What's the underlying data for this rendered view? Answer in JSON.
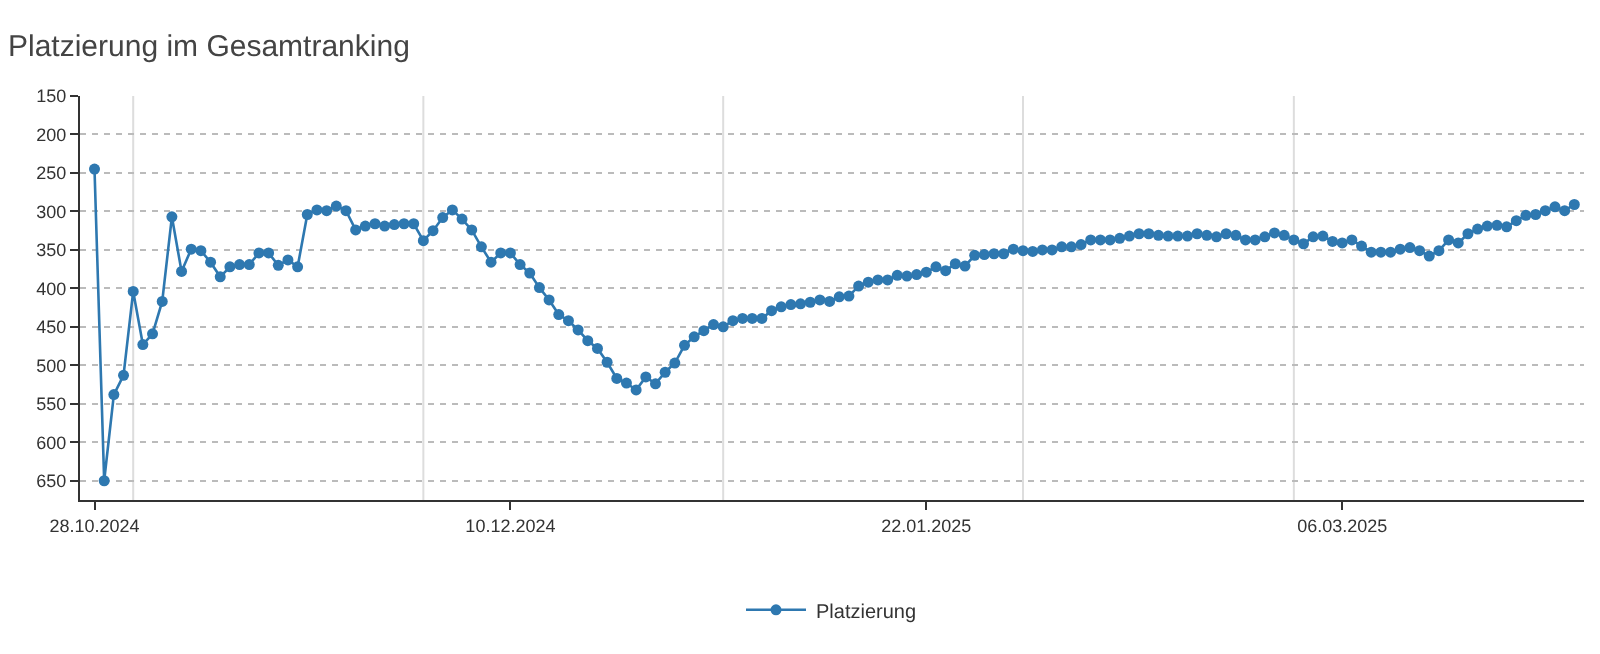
{
  "chart_data": {
    "type": "line",
    "title": "Platzierung im Gesamtranking",
    "x": [
      "2024-10-28",
      "2024-10-29",
      "2024-10-30",
      "2024-10-31",
      "2024-11-01",
      "2024-11-02",
      "2024-11-03",
      "2024-11-04",
      "2024-11-05",
      "2024-11-06",
      "2024-11-07",
      "2024-11-08",
      "2024-11-09",
      "2024-11-10",
      "2024-11-11",
      "2024-11-12",
      "2024-11-13",
      "2024-11-14",
      "2024-11-15",
      "2024-11-16",
      "2024-11-17",
      "2024-11-18",
      "2024-11-19",
      "2024-11-20",
      "2024-11-21",
      "2024-11-22",
      "2024-11-23",
      "2024-11-24",
      "2024-11-25",
      "2024-11-26",
      "2024-11-27",
      "2024-11-28",
      "2024-11-29",
      "2024-11-30",
      "2024-12-01",
      "2024-12-02",
      "2024-12-03",
      "2024-12-04",
      "2024-12-05",
      "2024-12-06",
      "2024-12-07",
      "2024-12-08",
      "2024-12-09",
      "2024-12-10",
      "2024-12-11",
      "2024-12-12",
      "2024-12-13",
      "2024-12-14",
      "2024-12-15",
      "2024-12-16",
      "2024-12-17",
      "2024-12-18",
      "2024-12-19",
      "2024-12-20",
      "2024-12-21",
      "2024-12-22",
      "2024-12-23",
      "2024-12-24",
      "2024-12-25",
      "2024-12-26",
      "2024-12-27",
      "2024-12-28",
      "2024-12-29",
      "2024-12-30",
      "2024-12-31",
      "2025-01-01",
      "2025-01-02",
      "2025-01-03",
      "2025-01-04",
      "2025-01-05",
      "2025-01-06",
      "2025-01-07",
      "2025-01-08",
      "2025-01-09",
      "2025-01-10",
      "2025-01-11",
      "2025-01-12",
      "2025-01-13",
      "2025-01-14",
      "2025-01-15",
      "2025-01-16",
      "2025-01-17",
      "2025-01-18",
      "2025-01-19",
      "2025-01-20",
      "2025-01-21",
      "2025-01-22",
      "2025-01-23",
      "2025-01-24",
      "2025-01-25",
      "2025-01-26",
      "2025-01-27",
      "2025-01-28",
      "2025-01-29",
      "2025-01-30",
      "2025-01-31",
      "2025-02-01",
      "2025-02-02",
      "2025-02-03",
      "2025-02-04",
      "2025-02-05",
      "2025-02-06",
      "2025-02-07",
      "2025-02-08",
      "2025-02-09",
      "2025-02-10",
      "2025-02-11",
      "2025-02-12",
      "2025-02-13",
      "2025-02-14",
      "2025-02-15",
      "2025-02-16",
      "2025-02-17",
      "2025-02-18",
      "2025-02-19",
      "2025-02-20",
      "2025-02-21",
      "2025-02-22",
      "2025-02-23",
      "2025-02-24",
      "2025-02-25",
      "2025-02-26",
      "2025-02-27",
      "2025-02-28",
      "2025-03-01",
      "2025-03-02",
      "2025-03-03",
      "2025-03-04",
      "2025-03-05",
      "2025-03-06",
      "2025-03-07",
      "2025-03-08",
      "2025-03-09",
      "2025-03-10",
      "2025-03-11",
      "2025-03-12",
      "2025-03-13",
      "2025-03-14",
      "2025-03-15",
      "2025-03-16",
      "2025-03-17",
      "2025-03-18",
      "2025-03-19",
      "2025-03-20",
      "2025-03-21",
      "2025-03-22",
      "2025-03-23",
      "2025-03-24",
      "2025-03-25",
      "2025-03-26",
      "2025-03-27",
      "2025-03-28",
      "2025-03-29",
      "2025-03-30"
    ],
    "series": [
      {
        "name": "Platzierung",
        "color": "#2e78b0",
        "values": [
          245,
          650,
          538,
          513,
          404,
          473,
          459,
          417,
          307,
          378,
          349,
          351,
          366,
          385,
          372,
          369,
          369,
          354,
          354,
          370,
          363,
          372,
          304,
          298,
          299,
          293,
          299,
          324,
          319,
          316,
          319,
          317,
          316,
          316,
          338,
          325,
          308,
          298,
          310,
          324,
          346,
          366,
          354,
          354,
          369,
          380,
          399,
          415,
          434,
          442,
          454,
          468,
          478,
          496,
          517,
          523,
          532,
          515,
          524,
          509,
          497,
          474,
          463,
          455,
          447,
          450,
          442,
          439,
          439,
          439,
          429,
          424,
          421,
          420,
          418,
          415,
          417,
          411,
          410,
          397,
          392,
          389,
          389,
          383,
          384,
          382,
          379,
          372,
          377,
          368,
          371,
          357,
          356,
          355,
          355,
          349,
          351,
          352,
          350,
          350,
          346,
          346,
          343,
          337,
          337,
          337,
          335,
          332,
          329,
          329,
          331,
          332,
          332,
          332,
          329,
          331,
          333,
          329,
          331,
          337,
          337,
          333,
          328,
          331,
          337,
          342,
          333,
          332,
          339,
          341,
          337,
          345,
          353,
          353,
          353,
          349,
          347,
          351,
          358,
          351,
          337,
          341,
          329,
          323,
          319,
          318,
          320,
          312,
          305,
          304,
          299,
          294,
          299,
          291
        ]
      }
    ],
    "xlim": [
      "2024-10-26T12:00",
      "2025-03-31"
    ],
    "xticks": [
      {
        "value": "2024-10-28",
        "label": "28.10.2024"
      },
      {
        "value": "2024-12-10",
        "label": "10.12.2024"
      },
      {
        "value": "2025-01-22",
        "label": "22.01.2025"
      },
      {
        "value": "2025-03-06",
        "label": "06.03.2025"
      }
    ],
    "ylim": [
      675,
      150
    ],
    "yticks": [
      150,
      200,
      250,
      300,
      350,
      400,
      450,
      500,
      550,
      600,
      650
    ],
    "grid": "y",
    "legend": "bottom",
    "marker": "circle",
    "line_style": "solid",
    "ref_lines": [
      {
        "axis": "x",
        "value": "2024-11-01",
        "label": null,
        "color": "#dddddd"
      },
      {
        "axis": "x",
        "value": "2024-12-01",
        "label": null,
        "color": "#dddddd"
      },
      {
        "axis": "x",
        "value": "2025-01-01",
        "label": null,
        "color": "#dddddd"
      },
      {
        "axis": "x",
        "value": "2025-02-01",
        "label": null,
        "color": "#dddddd"
      },
      {
        "axis": "x",
        "value": "2025-03-01",
        "label": null,
        "color": "#dddddd"
      }
    ]
  }
}
